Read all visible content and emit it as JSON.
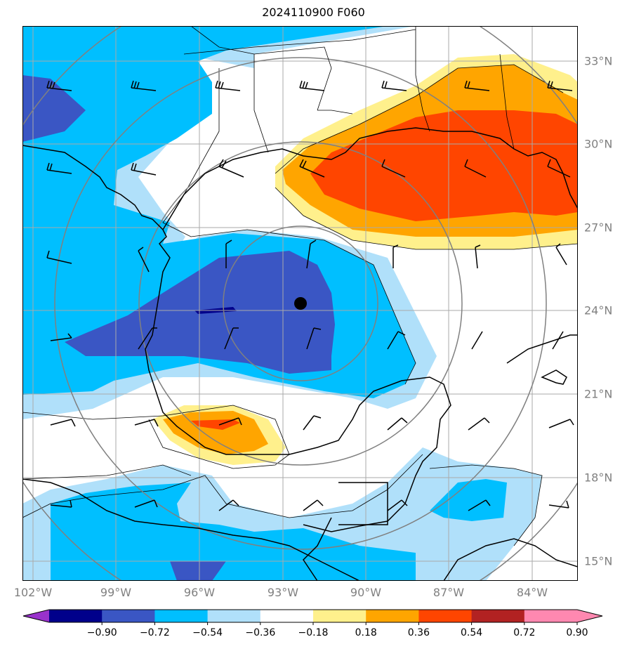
{
  "title": "2024110900 F060",
  "map": {
    "lat_labels": [
      "33°N",
      "30°N",
      "27°N",
      "24°N",
      "21°N",
      "18°N",
      "15°N"
    ],
    "lon_labels": [
      "102°W",
      "99°W",
      "96°W",
      "93°W",
      "90°W",
      "87°W",
      "84°W"
    ],
    "center_marker": "black-dot",
    "colors": {
      "deep_blue": "#3a56c4",
      "blue": "#00bfff",
      "light_blue": "#b0e0fa",
      "light_yellow": "#fff08c",
      "orange": "#ffa500",
      "orange_red": "#ff4500",
      "grid": "#aaaaaa",
      "range_rings": "#808080"
    }
  },
  "colorbar": {
    "ticks": [
      "−0.90",
      "−0.72",
      "−0.54",
      "−0.36",
      "−0.18",
      "0.18",
      "0.36",
      "0.54",
      "0.72",
      "0.90"
    ],
    "colors": [
      "#9932cc",
      "#00008b",
      "#3a56c4",
      "#00bfff",
      "#b0e0fa",
      "#ffffff",
      "#fff08c",
      "#ffa500",
      "#ff4500",
      "#b22222",
      "#ff88b0",
      "#ff88b0"
    ]
  }
}
